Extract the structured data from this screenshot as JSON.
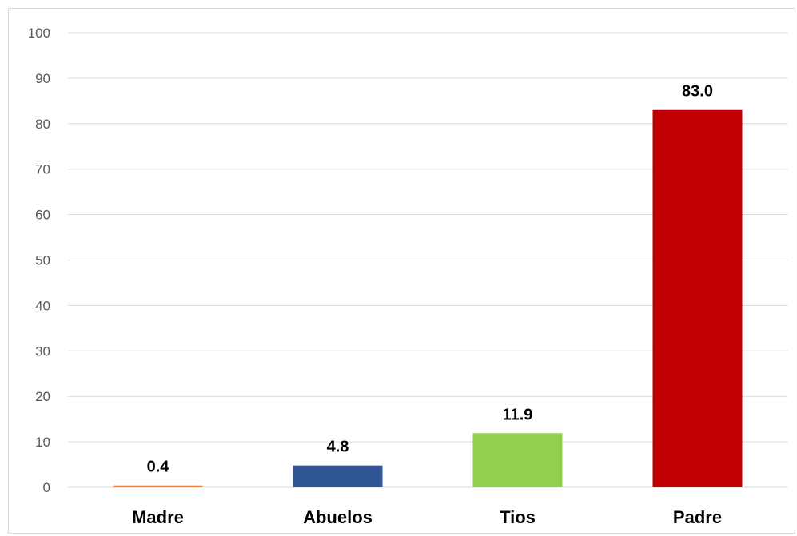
{
  "chart_data": {
    "type": "bar",
    "categories": [
      "Madre",
      "Abuelos",
      "Tios",
      "Padre"
    ],
    "values": [
      0.4,
      4.8,
      11.9,
      83.0
    ],
    "data_labels": [
      "0.4",
      "4.8",
      "11.9",
      "83.0"
    ],
    "colors": [
      "#ED7D31",
      "#2F5597",
      "#92D050",
      "#C00000"
    ],
    "title": "",
    "xlabel": "",
    "ylabel": "",
    "ylim": [
      0,
      100
    ],
    "yticks": [
      0,
      10,
      20,
      30,
      40,
      50,
      60,
      70,
      80,
      90,
      100
    ],
    "grid": true,
    "gridline_color": "#d9d9d9",
    "legend": "none"
  }
}
